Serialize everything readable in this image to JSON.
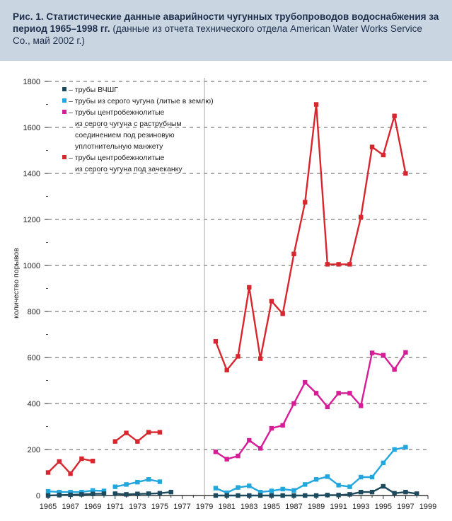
{
  "caption": {
    "bold": "Рис. 1. Статистические данные аварийности чугунных трубопроводов водоснабжения за период 1965–1998 гг.",
    "normal": " (данные из отчета технического отдела American Water Works Service Co., май 2002 г.)"
  },
  "colors": {
    "s1": "#1c4a5c",
    "s2": "#22a6de",
    "s3": "#d61c96",
    "s4": "#d8262f",
    "grid": "#222222",
    "caption_bg": "#c9d6e1"
  },
  "chart_data": {
    "type": "line",
    "title": "",
    "xlabel": "",
    "ylabel": "количество порывов",
    "xlim": [
      1965,
      1999
    ],
    "ylim": [
      0,
      1800
    ],
    "x_ticks": [
      "1965",
      "1967",
      "1969",
      "1971",
      "1973",
      "1975",
      "1977",
      "1979",
      "1981",
      "1983",
      "1985",
      "1987",
      "1989",
      "1991",
      "1993",
      "1995",
      "1997",
      "1999"
    ],
    "y_ticks": [
      "0",
      "200",
      "400",
      "600",
      "800",
      "1000",
      "1200",
      "1400",
      "1600",
      "1800"
    ],
    "legend": [
      "– трубы ВЧШГ",
      "– трубы из серого чугуна (литые в землю)",
      "– трубы центробежнолитые\nиз серого чугуна с раструбным\nсоединением под резиновую\nуплотнительную манжету",
      "– трубы центробежнолитые\nиз серого чугуна под зачеканку"
    ],
    "series": [
      {
        "name": "трубы ВЧШГ",
        "segments": [
          [
            [
              1965,
              0
            ],
            [
              1966,
              2
            ],
            [
              1967,
              3
            ],
            [
              1968,
              5
            ],
            [
              1969,
              7
            ],
            [
              1970,
              8
            ]
          ],
          [
            [
              1971,
              8
            ],
            [
              1972,
              5
            ],
            [
              1973,
              7
            ],
            [
              1974,
              8
            ],
            [
              1975,
              10
            ],
            [
              1976,
              15
            ]
          ],
          [
            [
              1980,
              0
            ],
            [
              1981,
              0
            ],
            [
              1982,
              0
            ],
            [
              1983,
              0
            ],
            [
              1984,
              0
            ],
            [
              1985,
              0
            ],
            [
              1986,
              0
            ],
            [
              1987,
              0
            ],
            [
              1988,
              0
            ],
            [
              1989,
              0
            ],
            [
              1990,
              2
            ],
            [
              1991,
              2
            ],
            [
              1992,
              5
            ],
            [
              1993,
              15
            ],
            [
              1994,
              15
            ],
            [
              1995,
              40
            ],
            [
              1996,
              10
            ],
            [
              1997,
              15
            ],
            [
              1998,
              8
            ]
          ]
        ]
      },
      {
        "name": "трубы из серого чугуна (литые в землю)",
        "segments": [
          [
            [
              1965,
              18
            ],
            [
              1966,
              15
            ],
            [
              1967,
              15
            ],
            [
              1968,
              15
            ],
            [
              1969,
              22
            ],
            [
              1970,
              20
            ]
          ],
          [
            [
              1971,
              38
            ],
            [
              1972,
              48
            ],
            [
              1973,
              58
            ],
            [
              1974,
              70
            ],
            [
              1975,
              60
            ]
          ],
          [
            [
              1980,
              32
            ],
            [
              1981,
              12
            ],
            [
              1982,
              35
            ],
            [
              1983,
              42
            ],
            [
              1984,
              15
            ],
            [
              1985,
              20
            ],
            [
              1986,
              28
            ],
            [
              1987,
              22
            ],
            [
              1988,
              48
            ],
            [
              1989,
              70
            ],
            [
              1990,
              82
            ],
            [
              1991,
              45
            ],
            [
              1992,
              38
            ],
            [
              1993,
              80
            ],
            [
              1994,
              80
            ],
            [
              1995,
              142
            ],
            [
              1996,
              200
            ],
            [
              1997,
              210
            ]
          ]
        ]
      },
      {
        "name": "трубы центробежнолитые из серого чугуна с раструбным соединением под резиновую уплотнительную манжету",
        "segments": [
          [
            [
              1980,
              190
            ],
            [
              1981,
              158
            ],
            [
              1982,
              172
            ],
            [
              1983,
              240
            ],
            [
              1984,
              205
            ],
            [
              1985,
              292
            ],
            [
              1986,
              305
            ],
            [
              1987,
              400
            ],
            [
              1988,
              492
            ],
            [
              1989,
              445
            ],
            [
              1990,
              385
            ],
            [
              1991,
              445
            ],
            [
              1992,
              445
            ],
            [
              1993,
              390
            ],
            [
              1994,
              620
            ],
            [
              1995,
              610
            ],
            [
              1996,
              548
            ],
            [
              1997,
              622
            ]
          ]
        ]
      },
      {
        "name": "трубы центробежнолитые из серого чугуна под зачеканку",
        "segments": [
          [
            [
              1965,
              100
            ],
            [
              1966,
              148
            ],
            [
              1967,
              95
            ],
            [
              1968,
              160
            ],
            [
              1969,
              150
            ]
          ],
          [
            [
              1971,
              235
            ],
            [
              1972,
              272
            ],
            [
              1973,
              235
            ],
            [
              1974,
              275
            ],
            [
              1975,
              275
            ]
          ],
          [
            [
              1980,
              670
            ],
            [
              1981,
              545
            ],
            [
              1982,
              605
            ],
            [
              1983,
              905
            ],
            [
              1984,
              595
            ],
            [
              1985,
              845
            ],
            [
              1986,
              790
            ],
            [
              1987,
              1050
            ],
            [
              1988,
              1275
            ],
            [
              1989,
              1700
            ],
            [
              1990,
              1005
            ],
            [
              1991,
              1005
            ],
            [
              1992,
              1005
            ],
            [
              1993,
              1210
            ],
            [
              1994,
              1515
            ],
            [
              1995,
              1480
            ],
            [
              1996,
              1650
            ],
            [
              1997,
              1400
            ]
          ]
        ]
      }
    ]
  }
}
